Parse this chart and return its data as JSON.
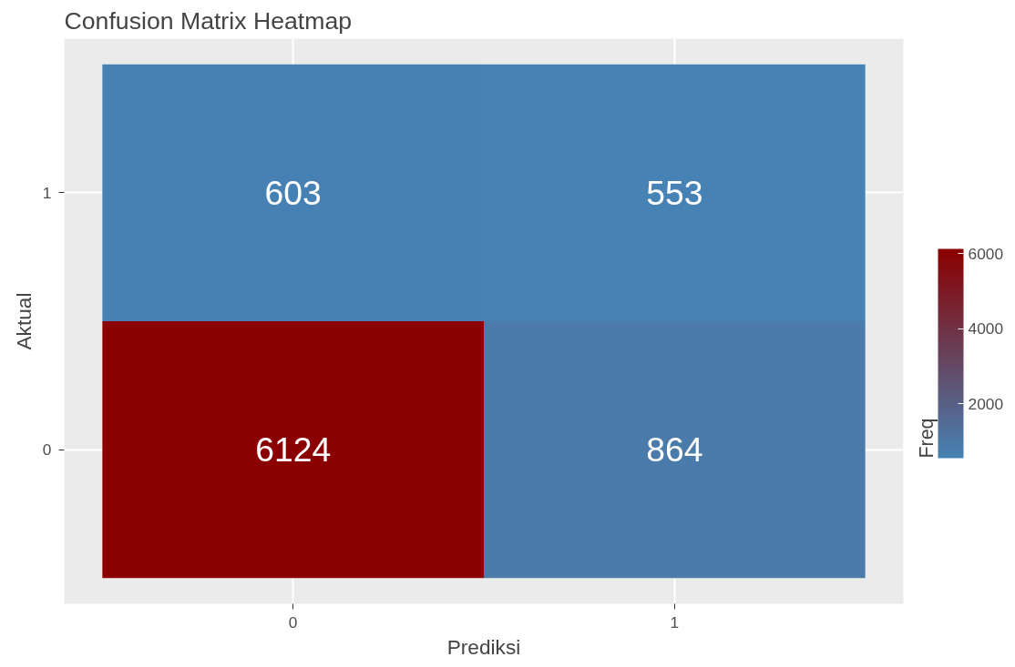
{
  "chart_data": {
    "type": "heatmap",
    "title": "Confusion Matrix Heatmap",
    "xlabel": "Prediksi",
    "ylabel": "Aktual",
    "clabel": "Freq",
    "categories": [
      "0",
      "1"
    ],
    "y_categories": [
      "1",
      "0"
    ],
    "cells": [
      [
        603,
        553
      ],
      [
        6124,
        864
      ]
    ],
    "data_labels": true,
    "colors": [
      "#4682b4",
      "#8b0000"
    ],
    "clim": [
      553,
      6124
    ],
    "cticks": [
      2000,
      4000,
      6000
    ],
    "grid": true
  }
}
